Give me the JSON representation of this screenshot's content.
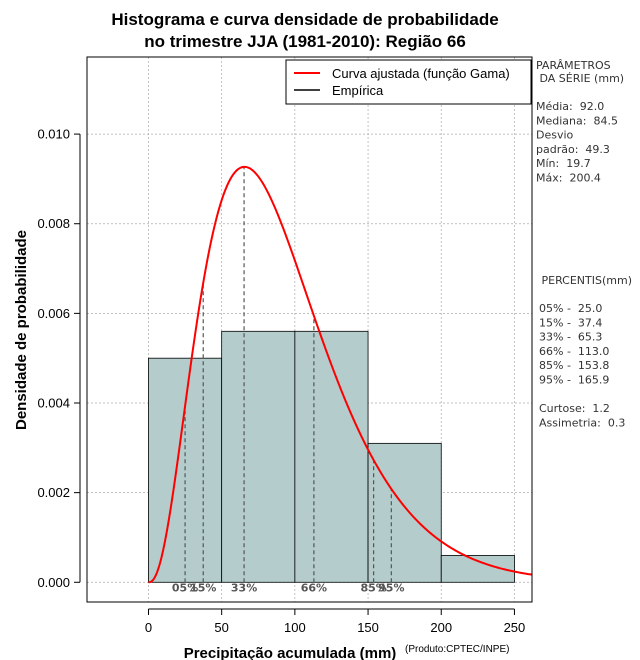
{
  "chart_data": {
    "type": "histogram",
    "title": [
      "Histograma e curva densidade de probabilidade",
      "no trimestre JJA (1981-2010): Região 66"
    ],
    "xlabel": "Precipitação acumulada (mm)",
    "ylabel": "Densidade de probabilidade",
    "credit": "(Produto:CPTEC/INPE)",
    "xlim": [
      -42,
      262
    ],
    "ylim": [
      -0.00044,
      0.01172
    ],
    "xticks": [
      0,
      50,
      100,
      150,
      200,
      250
    ],
    "yticks": [
      0.0,
      0.002,
      0.004,
      0.006,
      0.008,
      0.01
    ],
    "ytick_labels": [
      "0.000",
      "0.002",
      "0.004",
      "0.006",
      "0.008",
      "0.010"
    ],
    "bins": [
      {
        "from": 0,
        "to": 50,
        "density": 0.005
      },
      {
        "from": 50,
        "to": 100,
        "density": 0.0056
      },
      {
        "from": 100,
        "to": 150,
        "density": 0.0056
      },
      {
        "from": 150,
        "to": 200,
        "density": 0.0031
      },
      {
        "from": 200,
        "to": 250,
        "density": 0.0006
      }
    ],
    "gamma_fit": {
      "mean": 92.0,
      "sd": 49.3
    },
    "percentiles": [
      {
        "label": "05%",
        "value": 25.0
      },
      {
        "label": "15%",
        "value": 37.4
      },
      {
        "label": "33%",
        "value": 65.3
      },
      {
        "label": "66%",
        "value": 113.0
      },
      {
        "label": "85%",
        "value": 153.8
      },
      {
        "label": "95%",
        "value": 165.9
      }
    ],
    "legend": {
      "position": "top-right",
      "entries": [
        {
          "label": "Curva ajustada (função Gama)",
          "color": "#ff0000"
        },
        {
          "label": "Empírica",
          "color": "#000000"
        }
      ]
    },
    "colors": {
      "bar_fill": "#b4cccc",
      "curve": "#ff0000",
      "grid": "#aaaaaa"
    },
    "grid": true
  },
  "side_panel": {
    "params_title": [
      "PARÂMETROS",
      " DA SÉRIE (mm)"
    ],
    "params": [
      "Média:  92.0",
      "Mediana:  84.5",
      "Desvio",
      "padrão:  49.3",
      "Mín:  19.7",
      "Máx:  200.4"
    ],
    "percentis_title": " PERCENTIS(mm)",
    "percentis": [
      "05% -  25.0",
      "15% -  37.4",
      "33% -  65.3",
      "66% -  113.0",
      "85% -  153.8",
      "95% -  165.9"
    ],
    "shape": [
      "Curtose:  1.2",
      "Assimetria:  0.3"
    ]
  }
}
